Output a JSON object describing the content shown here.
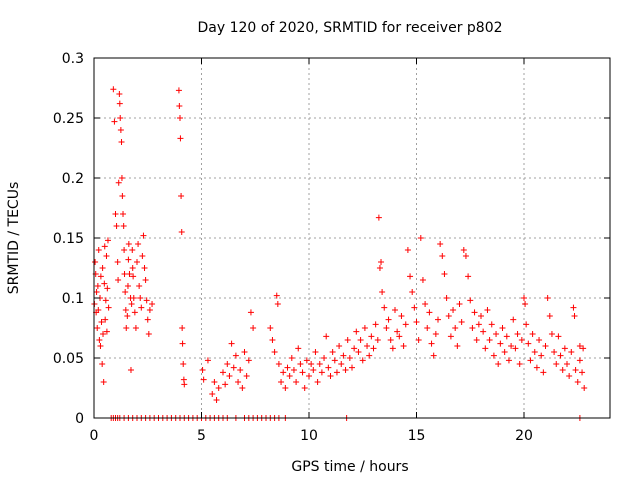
{
  "chart_data": {
    "type": "scatter",
    "title": "Day 120 of 2020, SRMTID for receiver p802",
    "xlabel": "GPS time / hours",
    "ylabel": "SRMTID / TECUs",
    "xlim": [
      0,
      24
    ],
    "ylim": [
      0,
      0.3
    ],
    "x_ticks": [
      0,
      5,
      10,
      15,
      20
    ],
    "y_ticks": [
      0,
      0.05,
      0.1,
      0.15,
      0.2,
      0.25,
      0.3
    ],
    "x_tick_labels": [
      "0",
      "5",
      "10",
      "15",
      "20"
    ],
    "y_tick_labels": [
      "0",
      "0.05",
      "0.1",
      "0.15",
      "0.2",
      "0.25",
      "0.3"
    ],
    "grid": true,
    "marker": "+",
    "color": "#ff0000",
    "series": [
      {
        "name": "SRMTID",
        "points": [
          [
            0.02,
            0.095
          ],
          [
            0.05,
            0.13
          ],
          [
            0.08,
            0.12
          ],
          [
            0.1,
            0.088
          ],
          [
            0.12,
            0.105
          ],
          [
            0.15,
            0.075
          ],
          [
            0.18,
            0.11
          ],
          [
            0.2,
            0.09
          ],
          [
            0.22,
            0.14
          ],
          [
            0.25,
            0.065
          ],
          [
            0.28,
            0.1
          ],
          [
            0.3,
            0.06
          ],
          [
            0.32,
            0.118
          ],
          [
            0.35,
            0.08
          ],
          [
            0.38,
            0.045
          ],
          [
            0.4,
            0.125
          ],
          [
            0.42,
            0.07
          ],
          [
            0.45,
            0.03
          ],
          [
            0.48,
            0.112
          ],
          [
            0.5,
            0.143
          ],
          [
            0.52,
            0.082
          ],
          [
            0.55,
            0.098
          ],
          [
            0.58,
            0.135
          ],
          [
            0.6,
            0.072
          ],
          [
            0.62,
            0.108
          ],
          [
            0.65,
            0.148
          ],
          [
            0.68,
            0.092
          ],
          [
            0.9,
            0.274
          ],
          [
            0.95,
            0.247
          ],
          [
            1.0,
            0.17
          ],
          [
            1.05,
            0.16
          ],
          [
            1.1,
            0.13
          ],
          [
            1.12,
            0.115
          ],
          [
            1.15,
            0.196
          ],
          [
            1.18,
            0.27
          ],
          [
            1.2,
            0.262
          ],
          [
            1.22,
            0.25
          ],
          [
            1.25,
            0.24
          ],
          [
            1.28,
            0.23
          ],
          [
            1.3,
            0.2
          ],
          [
            1.32,
            0.185
          ],
          [
            1.35,
            0.17
          ],
          [
            1.38,
            0.16
          ],
          [
            1.4,
            0.14
          ],
          [
            1.42,
            0.12
          ],
          [
            1.45,
            0.105
          ],
          [
            1.48,
            0.09
          ],
          [
            1.5,
            0.075
          ],
          [
            1.55,
            0.085
          ],
          [
            1.58,
            0.11
          ],
          [
            1.6,
            0.132
          ],
          [
            1.62,
            0.145
          ],
          [
            1.65,
            0.12
          ],
          [
            1.7,
            0.1
          ],
          [
            1.72,
            0.04
          ],
          [
            1.75,
            0.095
          ],
          [
            1.78,
            0.14
          ],
          [
            1.8,
            0.125
          ],
          [
            1.82,
            0.118
          ],
          [
            1.85,
            0.1
          ],
          [
            1.9,
            0.088
          ],
          [
            1.95,
            0.075
          ],
          [
            2.0,
            0.13
          ],
          [
            2.05,
            0.145
          ],
          [
            2.1,
            0.11
          ],
          [
            2.15,
            0.1
          ],
          [
            2.2,
            0.092
          ],
          [
            2.25,
            0.135
          ],
          [
            2.3,
            0.152
          ],
          [
            2.35,
            0.125
          ],
          [
            2.4,
            0.115
          ],
          [
            2.45,
            0.098
          ],
          [
            2.5,
            0.082
          ],
          [
            2.55,
            0.07
          ],
          [
            2.6,
            0.09
          ],
          [
            2.7,
            0.095
          ],
          [
            3.95,
            0.273
          ],
          [
            3.97,
            0.26
          ],
          [
            4.0,
            0.25
          ],
          [
            4.02,
            0.233
          ],
          [
            4.05,
            0.185
          ],
          [
            4.08,
            0.155
          ],
          [
            4.1,
            0.075
          ],
          [
            4.12,
            0.062
          ],
          [
            4.15,
            0.045
          ],
          [
            4.18,
            0.032
          ],
          [
            4.2,
            0.028
          ],
          [
            5.05,
            0.04
          ],
          [
            5.1,
            0.032
          ],
          [
            5.3,
            0.048
          ],
          [
            5.5,
            0.02
          ],
          [
            5.6,
            0.03
          ],
          [
            5.7,
            0.015
          ],
          [
            5.8,
            0.025
          ],
          [
            6.0,
            0.038
          ],
          [
            6.1,
            0.028
          ],
          [
            6.2,
            0.045
          ],
          [
            6.3,
            0.035
          ],
          [
            6.4,
            0.062
          ],
          [
            6.5,
            0.042
          ],
          [
            6.6,
            0.052
          ],
          [
            6.7,
            0.03
          ],
          [
            6.8,
            0.04
          ],
          [
            6.9,
            0.025
          ],
          [
            7.0,
            0.055
          ],
          [
            7.1,
            0.035
          ],
          [
            7.2,
            0.048
          ],
          [
            7.3,
            0.088
          ],
          [
            7.4,
            0.075
          ],
          [
            8.2,
            0.075
          ],
          [
            8.3,
            0.065
          ],
          [
            8.4,
            0.055
          ],
          [
            8.5,
            0.102
          ],
          [
            8.55,
            0.095
          ],
          [
            8.6,
            0.045
          ],
          [
            8.7,
            0.03
          ],
          [
            8.8,
            0.038
          ],
          [
            8.9,
            0.025
          ],
          [
            9.0,
            0.042
          ],
          [
            9.1,
            0.035
          ],
          [
            9.2,
            0.05
          ],
          [
            9.3,
            0.04
          ],
          [
            9.4,
            0.03
          ],
          [
            9.5,
            0.058
          ],
          [
            9.6,
            0.045
          ],
          [
            9.7,
            0.038
          ],
          [
            9.8,
            0.025
          ],
          [
            9.9,
            0.048
          ],
          [
            10.0,
            0.035
          ],
          [
            10.1,
            0.045
          ],
          [
            10.2,
            0.04
          ],
          [
            10.3,
            0.055
          ],
          [
            10.4,
            0.03
          ],
          [
            10.5,
            0.045
          ],
          [
            10.6,
            0.038
          ],
          [
            10.7,
            0.05
          ],
          [
            10.8,
            0.068
          ],
          [
            10.9,
            0.042
          ],
          [
            11.0,
            0.035
          ],
          [
            11.1,
            0.055
          ],
          [
            11.2,
            0.048
          ],
          [
            11.3,
            0.038
          ],
          [
            11.4,
            0.06
          ],
          [
            11.5,
            0.045
          ],
          [
            11.6,
            0.052
          ],
          [
            11.7,
            0.04
          ],
          [
            11.8,
            0.065
          ],
          [
            11.9,
            0.05
          ],
          [
            12.0,
            0.042
          ],
          [
            12.1,
            0.058
          ],
          [
            12.2,
            0.072
          ],
          [
            12.3,
            0.055
          ],
          [
            12.4,
            0.065
          ],
          [
            12.5,
            0.048
          ],
          [
            12.6,
            0.075
          ],
          [
            12.7,
            0.06
          ],
          [
            12.8,
            0.052
          ],
          [
            12.9,
            0.068
          ],
          [
            13.0,
            0.058
          ],
          [
            13.1,
            0.078
          ],
          [
            13.2,
            0.065
          ],
          [
            13.25,
            0.167
          ],
          [
            13.3,
            0.125
          ],
          [
            13.35,
            0.13
          ],
          [
            13.4,
            0.105
          ],
          [
            13.5,
            0.092
          ],
          [
            13.6,
            0.075
          ],
          [
            13.7,
            0.082
          ],
          [
            13.8,
            0.065
          ],
          [
            13.9,
            0.058
          ],
          [
            14.0,
            0.09
          ],
          [
            14.1,
            0.072
          ],
          [
            14.2,
            0.068
          ],
          [
            14.3,
            0.085
          ],
          [
            14.4,
            0.06
          ],
          [
            14.5,
            0.078
          ],
          [
            14.6,
            0.14
          ],
          [
            14.7,
            0.118
          ],
          [
            14.8,
            0.105
          ],
          [
            14.9,
            0.092
          ],
          [
            15.0,
            0.08
          ],
          [
            15.1,
            0.065
          ],
          [
            15.2,
            0.15
          ],
          [
            15.3,
            0.115
          ],
          [
            15.4,
            0.095
          ],
          [
            15.5,
            0.075
          ],
          [
            15.6,
            0.088
          ],
          [
            15.7,
            0.062
          ],
          [
            15.8,
            0.052
          ],
          [
            15.9,
            0.07
          ],
          [
            16.0,
            0.082
          ],
          [
            16.1,
            0.145
          ],
          [
            16.2,
            0.135
          ],
          [
            16.3,
            0.12
          ],
          [
            16.4,
            0.1
          ],
          [
            16.5,
            0.085
          ],
          [
            16.6,
            0.068
          ],
          [
            16.7,
            0.09
          ],
          [
            16.8,
            0.075
          ],
          [
            16.9,
            0.06
          ],
          [
            17.0,
            0.095
          ],
          [
            17.1,
            0.08
          ],
          [
            17.2,
            0.14
          ],
          [
            17.3,
            0.135
          ],
          [
            17.4,
            0.118
          ],
          [
            17.5,
            0.098
          ],
          [
            17.6,
            0.075
          ],
          [
            17.7,
            0.088
          ],
          [
            17.8,
            0.065
          ],
          [
            17.9,
            0.078
          ],
          [
            18.0,
            0.085
          ],
          [
            18.1,
            0.072
          ],
          [
            18.2,
            0.058
          ],
          [
            18.3,
            0.09
          ],
          [
            18.4,
            0.065
          ],
          [
            18.5,
            0.078
          ],
          [
            18.6,
            0.052
          ],
          [
            18.7,
            0.07
          ],
          [
            18.8,
            0.045
          ],
          [
            18.9,
            0.062
          ],
          [
            19.0,
            0.075
          ],
          [
            19.1,
            0.055
          ],
          [
            19.2,
            0.068
          ],
          [
            19.3,
            0.048
          ],
          [
            19.4,
            0.06
          ],
          [
            19.5,
            0.082
          ],
          [
            19.6,
            0.058
          ],
          [
            19.7,
            0.07
          ],
          [
            19.8,
            0.045
          ],
          [
            19.9,
            0.065
          ],
          [
            20.0,
            0.1
          ],
          [
            20.05,
            0.095
          ],
          [
            20.1,
            0.078
          ],
          [
            20.2,
            0.062
          ],
          [
            20.3,
            0.048
          ],
          [
            20.4,
            0.07
          ],
          [
            20.5,
            0.055
          ],
          [
            20.6,
            0.042
          ],
          [
            20.7,
            0.065
          ],
          [
            20.8,
            0.052
          ],
          [
            20.9,
            0.038
          ],
          [
            21.0,
            0.06
          ],
          [
            21.1,
            0.1
          ],
          [
            21.2,
            0.085
          ],
          [
            21.3,
            0.07
          ],
          [
            21.4,
            0.055
          ],
          [
            21.5,
            0.045
          ],
          [
            21.6,
            0.068
          ],
          [
            21.7,
            0.052
          ],
          [
            21.8,
            0.04
          ],
          [
            21.9,
            0.058
          ],
          [
            22.0,
            0.045
          ],
          [
            22.1,
            0.035
          ],
          [
            22.2,
            0.055
          ],
          [
            22.3,
            0.092
          ],
          [
            22.35,
            0.085
          ],
          [
            22.4,
            0.04
          ],
          [
            22.5,
            0.03
          ],
          [
            22.6,
            0.048
          ],
          [
            22.7,
            0.038
          ],
          [
            22.8,
            0.025
          ],
          [
            22.6,
            0.06
          ],
          [
            22.75,
            0.058
          ],
          [
            0.8,
            0.0
          ],
          [
            0.9,
            0.0
          ],
          [
            1.0,
            0.0
          ],
          [
            1.1,
            0.0
          ],
          [
            1.2,
            0.0
          ],
          [
            1.4,
            0.0
          ],
          [
            1.6,
            0.0
          ],
          [
            1.8,
            0.0
          ],
          [
            2.0,
            0.0
          ],
          [
            2.2,
            0.0
          ],
          [
            2.4,
            0.0
          ],
          [
            2.6,
            0.0
          ],
          [
            2.8,
            0.0
          ],
          [
            3.0,
            0.0
          ],
          [
            3.2,
            0.0
          ],
          [
            3.4,
            0.0
          ],
          [
            3.6,
            0.0
          ],
          [
            3.8,
            0.0
          ],
          [
            4.0,
            0.0
          ],
          [
            4.2,
            0.0
          ],
          [
            4.4,
            0.0
          ],
          [
            4.6,
            0.0
          ],
          [
            4.8,
            0.0
          ],
          [
            5.0,
            0.0
          ],
          [
            5.2,
            0.0
          ],
          [
            5.4,
            0.0
          ],
          [
            5.6,
            0.0
          ],
          [
            5.8,
            0.0
          ],
          [
            6.0,
            0.0
          ],
          [
            6.2,
            0.0
          ],
          [
            6.6,
            0.0
          ],
          [
            7.0,
            0.0
          ],
          [
            7.2,
            0.0
          ],
          [
            7.4,
            0.0
          ],
          [
            7.6,
            0.0
          ],
          [
            7.8,
            0.0
          ],
          [
            8.0,
            0.0
          ],
          [
            8.2,
            0.0
          ],
          [
            8.4,
            0.0
          ],
          [
            8.6,
            0.0
          ],
          [
            8.9,
            0.0
          ],
          [
            11.75,
            0.0
          ],
          [
            22.6,
            0.0
          ]
        ]
      }
    ]
  }
}
